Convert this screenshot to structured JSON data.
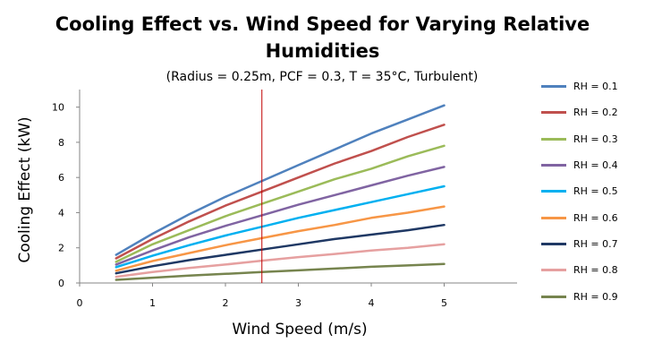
{
  "chart_data": {
    "type": "line",
    "title_line1": "Cooling Effect vs. Wind Speed for Varying Relative",
    "title_line2": "Humidities",
    "subtitle": "(Radius = 0.25m, PCF = 0.3, T = 35°C, Turbulent)",
    "xlabel": "Wind Speed (m/s)",
    "ylabel": "Cooling Effect (kW)",
    "xlim": [
      0,
      6
    ],
    "ylim": [
      0,
      11
    ],
    "x_ticks": [
      0,
      1,
      2,
      3,
      4,
      5
    ],
    "y_ticks": [
      0,
      2,
      4,
      6,
      8,
      10
    ],
    "x": [
      0.5,
      1,
      1.5,
      2,
      2.5,
      3,
      3.5,
      4,
      4.5,
      5
    ],
    "vertical_line_x": 2.5,
    "vertical_line_color": "#c00000",
    "legend_position": "right",
    "grid": false,
    "series": [
      {
        "name": "RH = 0.1",
        "color": "#4f81bd",
        "values": [
          1.6,
          2.8,
          3.9,
          4.9,
          5.8,
          6.7,
          7.6,
          8.5,
          9.3,
          10.1
        ]
      },
      {
        "name": "RH = 0.2",
        "color": "#c0504d",
        "values": [
          1.4,
          2.5,
          3.5,
          4.4,
          5.2,
          6.0,
          6.8,
          7.5,
          8.3,
          9.0
        ]
      },
      {
        "name": "RH = 0.3",
        "color": "#9bbb59",
        "values": [
          1.2,
          2.2,
          3.0,
          3.8,
          4.5,
          5.2,
          5.9,
          6.5,
          7.2,
          7.8
        ]
      },
      {
        "name": "RH = 0.4",
        "color": "#8064a2",
        "values": [
          1.05,
          1.85,
          2.6,
          3.25,
          3.85,
          4.45,
          5.0,
          5.55,
          6.1,
          6.6
        ]
      },
      {
        "name": "RH = 0.5",
        "color": "#00b0f0",
        "values": [
          0.9,
          1.55,
          2.15,
          2.7,
          3.2,
          3.7,
          4.15,
          4.6,
          5.05,
          5.5
        ]
      },
      {
        "name": "RH = 0.6",
        "color": "#f79646",
        "values": [
          0.7,
          1.25,
          1.7,
          2.15,
          2.55,
          2.95,
          3.3,
          3.7,
          4.0,
          4.35
        ]
      },
      {
        "name": "RH = 0.7",
        "color": "#1f3864",
        "values": [
          0.55,
          0.95,
          1.3,
          1.6,
          1.9,
          2.2,
          2.5,
          2.75,
          3.0,
          3.3
        ]
      },
      {
        "name": "RH = 0.8",
        "color": "#e6a0a0",
        "values": [
          0.35,
          0.62,
          0.85,
          1.05,
          1.27,
          1.47,
          1.65,
          1.85,
          2.0,
          2.2
        ]
      },
      {
        "name": "RH = 0.9",
        "color": "#76844e",
        "values": [
          0.18,
          0.3,
          0.42,
          0.52,
          0.62,
          0.72,
          0.82,
          0.92,
          1.0,
          1.08
        ]
      }
    ]
  }
}
